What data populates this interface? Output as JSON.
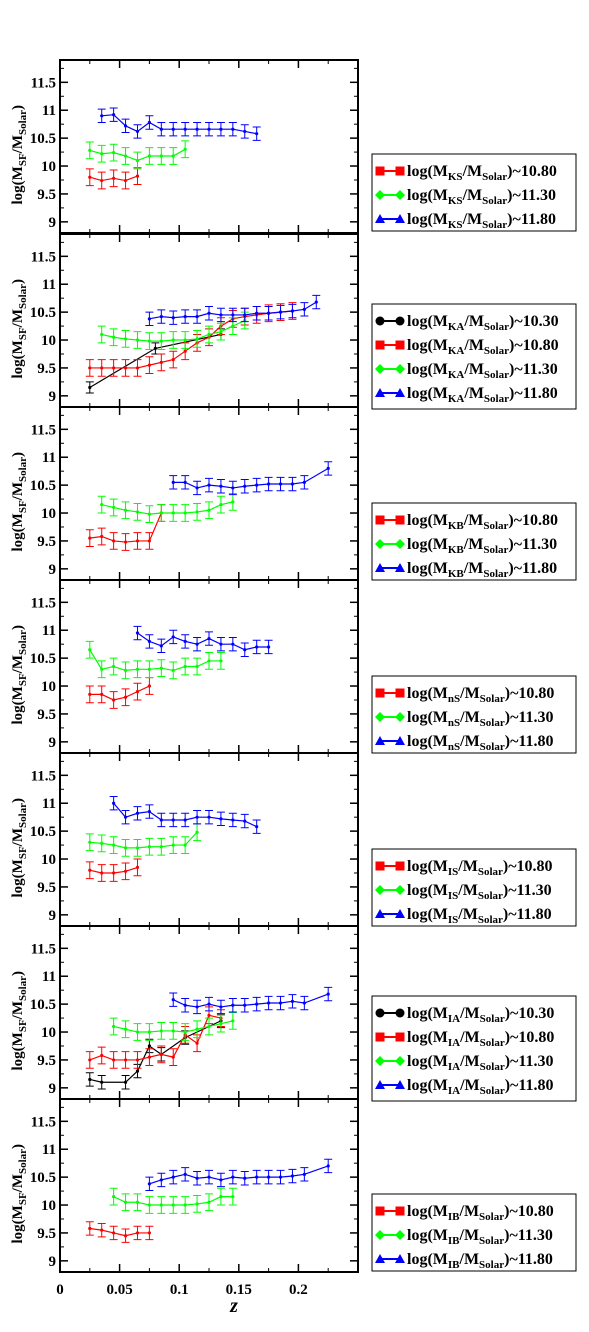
{
  "chart_data": {
    "type": "line",
    "shared_x_axis": {
      "label": "z",
      "range": [
        0,
        0.25
      ],
      "ticks": [
        0,
        0.05,
        0.1,
        0.15,
        0.2
      ],
      "tick_labels": [
        "0",
        "0.05",
        "0.1",
        "0.15",
        "0.2"
      ]
    },
    "y_axis": {
      "label_main": "log(M",
      "label_sub": "SF",
      "label_mid": "/M",
      "label_sub2": "Solar",
      "label_end": ")",
      "range": [
        8.8,
        11.9
      ],
      "ticks": [
        9,
        9.5,
        10,
        10.5,
        11,
        11.5
      ],
      "tick_labels": [
        "9",
        "9.5",
        "10",
        "10.5",
        "11",
        "11.5"
      ]
    },
    "legend_placement": "right",
    "series_colors": {
      "10.30": "#000000",
      "10.80": "#ff0000",
      "11.30": "#00ff00",
      "11.80": "#0000ff"
    },
    "series_markers": {
      "10.30": "circle",
      "10.80": "square",
      "11.30": "diamond",
      "11.80": "triangle"
    },
    "panels": [
      {
        "subscript": "KS",
        "series": [
          {
            "key": "10.80",
            "label": "~10.80",
            "x": [
              0.025,
              0.035,
              0.045,
              0.055,
              0.065
            ],
            "y": [
              9.8,
              9.74,
              9.78,
              9.74,
              9.82
            ],
            "err": 0.15
          },
          {
            "key": "11.30",
            "label": "~11.30",
            "x": [
              0.025,
              0.035,
              0.045,
              0.055,
              0.065,
              0.075,
              0.085,
              0.095,
              0.105
            ],
            "y": [
              10.28,
              10.22,
              10.24,
              10.18,
              10.1,
              10.18,
              10.18,
              10.18,
              10.3
            ],
            "err": 0.15
          },
          {
            "key": "11.80",
            "label": "~11.80",
            "x": [
              0.035,
              0.045,
              0.055,
              0.065,
              0.075,
              0.085,
              0.095,
              0.105,
              0.115,
              0.125,
              0.135,
              0.145,
              0.155,
              0.165
            ],
            "y": [
              10.9,
              10.92,
              10.72,
              10.62,
              10.78,
              10.66,
              10.66,
              10.66,
              10.66,
              10.66,
              10.66,
              10.66,
              10.62,
              10.58
            ],
            "err": 0.12
          }
        ]
      },
      {
        "subscript": "KA",
        "series": [
          {
            "key": "10.30",
            "label": "~10.30",
            "x": [
              0.025,
              0.08,
              0.135
            ],
            "y": [
              9.15,
              9.85,
              10.1
            ],
            "err": 0.1
          },
          {
            "key": "10.80",
            "label": "~10.80",
            "x": [
              0.025,
              0.035,
              0.045,
              0.055,
              0.065,
              0.075,
              0.085,
              0.095,
              0.105,
              0.115,
              0.125,
              0.135,
              0.145,
              0.155,
              0.165,
              0.175,
              0.185,
              0.195
            ],
            "y": [
              9.5,
              9.5,
              9.5,
              9.5,
              9.5,
              9.55,
              9.6,
              9.65,
              9.8,
              9.95,
              10.05,
              10.25,
              10.38,
              10.42,
              10.45,
              10.48,
              10.5,
              10.52
            ],
            "err": 0.15
          },
          {
            "key": "11.30",
            "label": "~11.30",
            "x": [
              0.035,
              0.045,
              0.055,
              0.065,
              0.075,
              0.085,
              0.095,
              0.105,
              0.115,
              0.125,
              0.135,
              0.145,
              0.155
            ],
            "y": [
              10.1,
              10.05,
              10.02,
              10.0,
              9.98,
              9.98,
              10.0,
              10.0,
              10.02,
              10.1,
              10.15,
              10.25,
              10.35
            ],
            "err": 0.15
          },
          {
            "key": "11.80",
            "label": "~11.80",
            "x": [
              0.075,
              0.085,
              0.095,
              0.105,
              0.115,
              0.125,
              0.135,
              0.145,
              0.155,
              0.165,
              0.175,
              0.185,
              0.195,
              0.205,
              0.215
            ],
            "y": [
              10.38,
              10.42,
              10.4,
              10.42,
              10.42,
              10.48,
              10.45,
              10.45,
              10.45,
              10.48,
              10.48,
              10.5,
              10.52,
              10.55,
              10.68
            ],
            "err": 0.12
          }
        ]
      },
      {
        "subscript": "KB",
        "series": [
          {
            "key": "10.80",
            "label": "~10.80",
            "x": [
              0.025,
              0.035,
              0.045,
              0.055,
              0.065,
              0.075,
              0.085
            ],
            "y": [
              9.55,
              9.58,
              9.5,
              9.48,
              9.5,
              9.5,
              10.0
            ],
            "err": 0.15
          },
          {
            "key": "11.30",
            "label": "~11.30",
            "x": [
              0.035,
              0.045,
              0.055,
              0.065,
              0.075,
              0.085,
              0.095,
              0.105,
              0.115,
              0.125,
              0.135,
              0.145
            ],
            "y": [
              10.15,
              10.1,
              10.05,
              10.02,
              9.98,
              10.0,
              10.0,
              10.0,
              10.02,
              10.05,
              10.15,
              10.2
            ],
            "err": 0.15
          },
          {
            "key": "11.80",
            "label": "~11.80",
            "x": [
              0.095,
              0.105,
              0.115,
              0.125,
              0.135,
              0.145,
              0.155,
              0.165,
              0.175,
              0.185,
              0.195,
              0.205,
              0.225
            ],
            "y": [
              10.55,
              10.55,
              10.45,
              10.5,
              10.48,
              10.45,
              10.48,
              10.5,
              10.52,
              10.52,
              10.52,
              10.55,
              10.8
            ],
            "err": 0.12
          }
        ]
      },
      {
        "subscript": "nS",
        "series": [
          {
            "key": "10.80",
            "label": "~10.80",
            "x": [
              0.025,
              0.035,
              0.045,
              0.055,
              0.065,
              0.075
            ],
            "y": [
              9.85,
              9.85,
              9.75,
              9.8,
              9.9,
              10.0
            ],
            "err": 0.15
          },
          {
            "key": "11.30",
            "label": "~11.30",
            "x": [
              0.025,
              0.035,
              0.045,
              0.055,
              0.065,
              0.075,
              0.085,
              0.095,
              0.105,
              0.115,
              0.125,
              0.135
            ],
            "y": [
              10.65,
              10.3,
              10.35,
              10.28,
              10.3,
              10.3,
              10.32,
              10.28,
              10.35,
              10.35,
              10.45,
              10.45
            ],
            "err": 0.15
          },
          {
            "key": "11.80",
            "label": "~11.80",
            "x": [
              0.065,
              0.075,
              0.085,
              0.095,
              0.105,
              0.115,
              0.125,
              0.135,
              0.145,
              0.155,
              0.165,
              0.175
            ],
            "y": [
              10.95,
              10.8,
              10.72,
              10.88,
              10.8,
              10.75,
              10.85,
              10.75,
              10.75,
              10.65,
              10.7,
              10.7
            ],
            "err": 0.12
          }
        ]
      },
      {
        "subscript": "IS",
        "series": [
          {
            "key": "10.80",
            "label": "~10.80",
            "x": [
              0.025,
              0.035,
              0.045,
              0.055,
              0.065
            ],
            "y": [
              9.8,
              9.75,
              9.75,
              9.78,
              9.85
            ],
            "err": 0.15
          },
          {
            "key": "11.30",
            "label": "~11.30",
            "x": [
              0.025,
              0.035,
              0.045,
              0.055,
              0.065,
              0.075,
              0.085,
              0.095,
              0.105,
              0.115
            ],
            "y": [
              10.3,
              10.28,
              10.25,
              10.2,
              10.2,
              10.22,
              10.22,
              10.25,
              10.25,
              10.48
            ],
            "err": 0.15
          },
          {
            "key": "11.80",
            "label": "~11.80",
            "x": [
              0.045,
              0.055,
              0.065,
              0.075,
              0.085,
              0.095,
              0.105,
              0.115,
              0.125,
              0.135,
              0.145,
              0.155,
              0.165
            ],
            "y": [
              11.0,
              10.75,
              10.82,
              10.85,
              10.7,
              10.7,
              10.7,
              10.75,
              10.75,
              10.72,
              10.7,
              10.68,
              10.58
            ],
            "err": 0.12
          }
        ]
      },
      {
        "subscript": "IA",
        "series": [
          {
            "key": "10.30",
            "label": "~10.30",
            "x": [
              0.025,
              0.035,
              0.055,
              0.065,
              0.075,
              0.085,
              0.105,
              0.135
            ],
            "y": [
              9.15,
              9.1,
              9.1,
              9.3,
              9.75,
              9.6,
              9.9,
              10.2
            ],
            "err": 0.12
          },
          {
            "key": "10.80",
            "label": "~10.80",
            "x": [
              0.025,
              0.035,
              0.045,
              0.055,
              0.065,
              0.075,
              0.085,
              0.095,
              0.105,
              0.115,
              0.125,
              0.135
            ],
            "y": [
              9.5,
              9.58,
              9.5,
              9.5,
              9.5,
              9.55,
              9.6,
              9.55,
              9.95,
              9.8,
              10.3,
              10.25
            ],
            "err": 0.15
          },
          {
            "key": "11.30",
            "label": "~11.30",
            "x": [
              0.045,
              0.055,
              0.065,
              0.075,
              0.085,
              0.095,
              0.105,
              0.115,
              0.125,
              0.135,
              0.145
            ],
            "y": [
              10.1,
              10.05,
              10.0,
              10.0,
              10.02,
              10.02,
              10.0,
              10.05,
              10.1,
              10.15,
              10.2
            ],
            "err": 0.15
          },
          {
            "key": "11.80",
            "label": "~11.80",
            "x": [
              0.095,
              0.105,
              0.115,
              0.125,
              0.135,
              0.145,
              0.155,
              0.165,
              0.175,
              0.185,
              0.195,
              0.205,
              0.225
            ],
            "y": [
              10.58,
              10.48,
              10.45,
              10.5,
              10.45,
              10.48,
              10.48,
              10.5,
              10.52,
              10.52,
              10.55,
              10.52,
              10.68
            ],
            "err": 0.12
          }
        ]
      },
      {
        "subscript": "IB",
        "series": [
          {
            "key": "10.80",
            "label": "~10.80",
            "x": [
              0.025,
              0.035,
              0.045,
              0.055,
              0.065,
              0.075
            ],
            "y": [
              9.58,
              9.55,
              9.5,
              9.45,
              9.5,
              9.5
            ],
            "err": 0.12
          },
          {
            "key": "11.30",
            "label": "~11.30",
            "x": [
              0.045,
              0.055,
              0.065,
              0.075,
              0.085,
              0.095,
              0.105,
              0.115,
              0.125,
              0.135,
              0.145
            ],
            "y": [
              10.15,
              10.05,
              10.05,
              10.0,
              10.0,
              10.0,
              10.0,
              10.02,
              10.05,
              10.15,
              10.15
            ],
            "err": 0.15
          },
          {
            "key": "11.80",
            "label": "~11.80",
            "x": [
              0.075,
              0.085,
              0.095,
              0.105,
              0.115,
              0.125,
              0.135,
              0.145,
              0.155,
              0.165,
              0.175,
              0.185,
              0.195,
              0.205,
              0.225
            ],
            "y": [
              10.38,
              10.45,
              10.5,
              10.55,
              10.48,
              10.5,
              10.45,
              10.5,
              10.48,
              10.5,
              10.5,
              10.5,
              10.52,
              10.55,
              10.7
            ],
            "err": 0.12
          }
        ]
      }
    ]
  }
}
